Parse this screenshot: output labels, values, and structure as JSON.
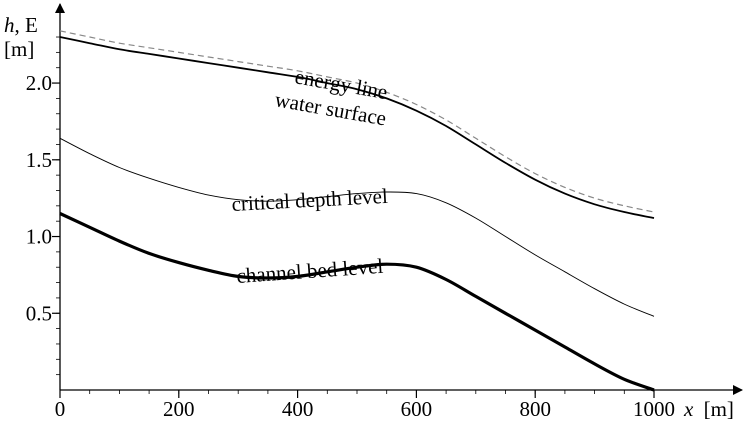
{
  "chart_data": {
    "type": "line",
    "xlabel_var": "x",
    "xlabel_unit": "[m]",
    "ylabel_var": "h",
    "ylabel_rest": ", E",
    "ylabel_unit": "[m]",
    "xlim": [
      0,
      1000
    ],
    "ylim": [
      0,
      2.45
    ],
    "x_ticks": [
      0,
      200,
      400,
      600,
      800,
      1000
    ],
    "x_tick_labels": [
      "0",
      "200",
      "400",
      "600",
      "800",
      "1000"
    ],
    "y_ticks": [
      0.5,
      1.0,
      1.5,
      2.0
    ],
    "y_tick_labels": [
      "0.5",
      "1.0",
      "1.5",
      "2.0"
    ],
    "grid": false,
    "x": [
      0,
      50,
      100,
      150,
      200,
      250,
      300,
      350,
      400,
      450,
      500,
      550,
      600,
      650,
      700,
      750,
      800,
      850,
      900,
      950,
      1000
    ],
    "series": [
      {
        "name": "energy line",
        "style": "dashed",
        "color": "#888888",
        "values": [
          2.34,
          2.3,
          2.26,
          2.23,
          2.2,
          2.17,
          2.14,
          2.11,
          2.08,
          2.04,
          2.0,
          1.94,
          1.86,
          1.76,
          1.64,
          1.52,
          1.41,
          1.32,
          1.25,
          1.2,
          1.16
        ]
      },
      {
        "name": "water surface",
        "style": "solid",
        "color": "#000000",
        "values": [
          2.3,
          2.26,
          2.22,
          2.19,
          2.16,
          2.13,
          2.1,
          2.07,
          2.04,
          2.0,
          1.96,
          1.9,
          1.82,
          1.72,
          1.6,
          1.48,
          1.37,
          1.28,
          1.21,
          1.16,
          1.12
        ]
      },
      {
        "name": "critical depth level",
        "style": "thin",
        "color": "#000000",
        "values": [
          1.64,
          1.54,
          1.45,
          1.38,
          1.32,
          1.27,
          1.24,
          1.23,
          1.24,
          1.26,
          1.28,
          1.29,
          1.28,
          1.22,
          1.12,
          1.0,
          0.88,
          0.77,
          0.66,
          0.56,
          0.48
        ]
      },
      {
        "name": "channel bed level",
        "style": "thick",
        "color": "#000000",
        "values": [
          1.15,
          1.06,
          0.97,
          0.89,
          0.83,
          0.78,
          0.74,
          0.73,
          0.74,
          0.77,
          0.8,
          0.82,
          0.8,
          0.72,
          0.61,
          0.5,
          0.39,
          0.28,
          0.17,
          0.07,
          0.0
        ]
      }
    ]
  }
}
